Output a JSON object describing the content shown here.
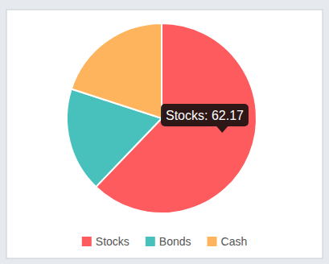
{
  "chart_data": {
    "type": "pie",
    "categories": [
      "Stocks",
      "Bonds",
      "Cash"
    ],
    "values": [
      62.17,
      17.83,
      20
    ],
    "colors": [
      "#fe5b5f",
      "#48c1bd",
      "#fdb45c"
    ],
    "legend": "bottom",
    "annotations": [
      "Stocks: 62.17"
    ]
  }
}
